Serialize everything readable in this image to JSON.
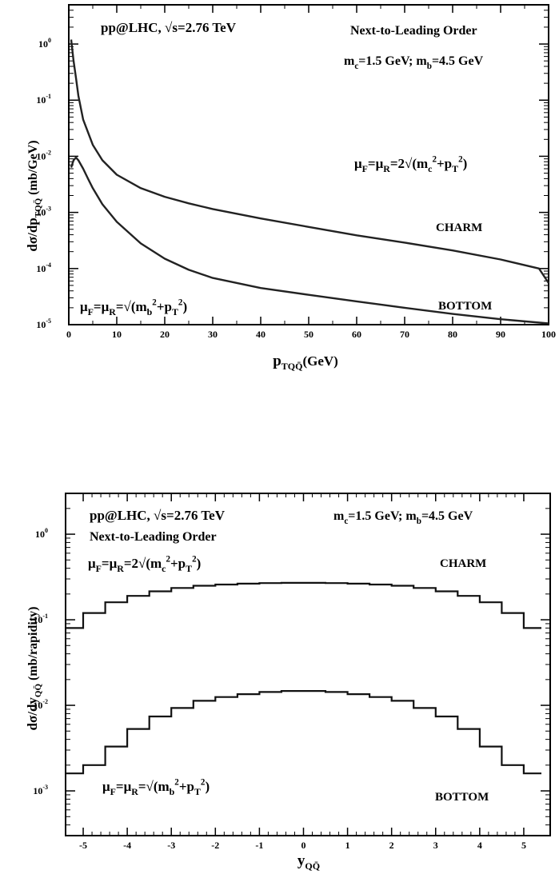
{
  "chart_data": [
    {
      "type": "line",
      "yscale": "log",
      "xlim": [
        0,
        100
      ],
      "ylim": [
        1e-05,
        5
      ],
      "x_ticks": [
        0,
        10,
        20,
        30,
        40,
        50,
        60,
        70,
        80,
        90,
        100
      ],
      "y_ticks": [
        {
          "v": 1,
          "mant": "10",
          "exp": "0"
        },
        {
          "v": 0.1,
          "mant": "10",
          "exp": "-1"
        },
        {
          "v": 0.01,
          "mant": "10",
          "exp": "-2"
        },
        {
          "v": 0.001,
          "mant": "10",
          "exp": "-3"
        },
        {
          "v": 0.0001,
          "mant": "10",
          "exp": "-4"
        },
        {
          "v": 1e-05,
          "mant": "10",
          "exp": "-5"
        }
      ],
      "xlabel": "p",
      "xlabel_sub": "TQQ̄",
      "xlabel_unit": "(GeV)",
      "ylabel": "dσ/dp",
      "ylabel_sub": "TQQ̄",
      "ylabel_unit": " (mb/GeV)",
      "annotations": {
        "collider": "pp@LHC, √s=2.76 TeV",
        "order": "Next-to-Leading Order",
        "masses": "m_c=1.5 GeV; m_b=4.5 GeV",
        "scale_charm": "μ_F=μ_R=2√(m_c²+p_T²)",
        "scale_bottom": "μ_F=μ_R=√(m_b²+p_T²)",
        "charm": "CHARM",
        "bottom": "BOTTOM"
      },
      "series": [
        {
          "name": "CHARM",
          "x": [
            0.5,
            1,
            1.5,
            2,
            3,
            5,
            7,
            10,
            15,
            20,
            25,
            30,
            40,
            50,
            60,
            70,
            80,
            90,
            98,
            100
          ],
          "y": [
            1.2,
            0.5,
            0.25,
            0.12,
            0.045,
            0.016,
            0.0085,
            0.0047,
            0.0027,
            0.0019,
            0.00145,
            0.00115,
            0.00078,
            0.00055,
            0.00039,
            0.00029,
            0.00021,
            0.000145,
            0.0001,
            5.5e-05
          ]
        },
        {
          "name": "BOTTOM",
          "x": [
            0.5,
            1,
            1.5,
            2,
            3,
            4,
            5,
            7,
            10,
            15,
            20,
            25,
            30,
            40,
            50,
            60,
            70,
            80,
            90,
            100
          ],
          "y": [
            0.0063,
            0.0085,
            0.0095,
            0.0085,
            0.006,
            0.004,
            0.0027,
            0.0014,
            0.00068,
            0.00028,
            0.00015,
            9.5e-05,
            6.8e-05,
            4.5e-05,
            3.4e-05,
            2.6e-05,
            2e-05,
            1.55e-05,
            1.25e-05,
            1.05e-05
          ]
        }
      ]
    },
    {
      "type": "step",
      "yscale": "log",
      "xlim": [
        -5.4,
        5.6
      ],
      "ylim": [
        0.0003,
        3
      ],
      "x_ticks": [
        -5,
        -4,
        -3,
        -2,
        -1,
        0,
        1,
        2,
        3,
        4,
        5
      ],
      "y_ticks": [
        {
          "v": 1,
          "mant": "10",
          "exp": "0"
        },
        {
          "v": 0.1,
          "mant": "10",
          "exp": "-1"
        },
        {
          "v": 0.01,
          "mant": "10",
          "exp": "-2"
        },
        {
          "v": 0.001,
          "mant": "10",
          "exp": "-3"
        }
      ],
      "xlabel": "y",
      "xlabel_sub": "QQ̄",
      "ylabel": "dσ/dy",
      "ylabel_sub": "QQ̄",
      "ylabel_unit": " (mb/rapidity)",
      "annotations": {
        "collider": "pp@LHC, √s=2.76 TeV",
        "order": "Next-to-Leading Order",
        "masses": "m_c=1.5 GeV; m_b=4.5 GeV",
        "scale_charm": "μ_F=μ_R=2√(m_c²+p_T²)",
        "scale_bottom": "μ_F=μ_R=√(m_b²+p_T²)",
        "charm": "CHARM",
        "bottom": "BOTTOM"
      },
      "bin_edges": [
        -5.4,
        -5.0,
        -4.5,
        -4.0,
        -3.5,
        -3.0,
        -2.5,
        -2.0,
        -1.5,
        -1.0,
        -0.5,
        0.0,
        0.5,
        1.0,
        1.5,
        2.0,
        2.5,
        3.0,
        3.5,
        4.0,
        4.5,
        5.0,
        5.4
      ],
      "series": [
        {
          "name": "CHARM",
          "values": [
            0.08,
            0.12,
            0.16,
            0.19,
            0.215,
            0.235,
            0.25,
            0.258,
            0.264,
            0.268,
            0.27,
            0.27,
            0.268,
            0.264,
            0.258,
            0.25,
            0.235,
            0.215,
            0.19,
            0.16,
            0.12,
            0.08
          ]
        },
        {
          "name": "BOTTOM",
          "values": [
            0.0016,
            0.002,
            0.0033,
            0.0053,
            0.0074,
            0.0093,
            0.0113,
            0.0125,
            0.0135,
            0.0143,
            0.0147,
            0.0147,
            0.0143,
            0.0135,
            0.0125,
            0.0113,
            0.0093,
            0.0074,
            0.0053,
            0.0033,
            0.002,
            0.0016
          ]
        }
      ]
    }
  ]
}
